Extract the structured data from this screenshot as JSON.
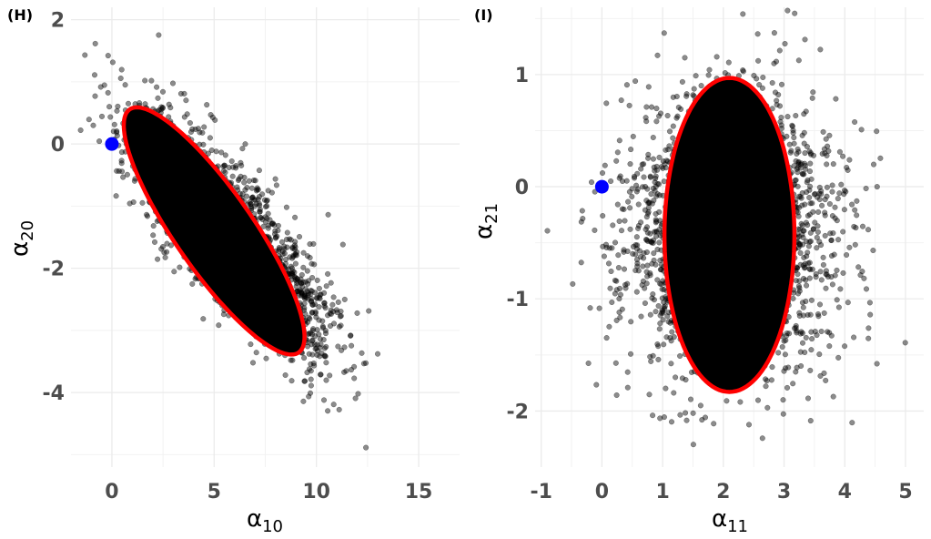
{
  "chart_data": [
    {
      "panel_label": "(H)",
      "type": "scatter",
      "xlabel": "α",
      "xlabel_sub": "10",
      "ylabel": "α",
      "ylabel_sub": "20",
      "xlim": [
        -2,
        17
      ],
      "ylim": [
        -5.2,
        2.2
      ],
      "x_ticks": [
        0,
        5,
        10,
        15
      ],
      "y_ticks": [
        -4,
        -2,
        0,
        2
      ],
      "x_tick_labels": [
        "0",
        "5",
        "10",
        "15"
      ],
      "y_tick_labels": [
        "-4",
        "-2",
        "0",
        "2"
      ],
      "grid": true,
      "point_color": "#000000",
      "cloud": {
        "mean": [
          5.6,
          -1.4
        ],
        "sd": [
          2.4,
          0.95
        ],
        "correlation": -0.82,
        "n": 2600,
        "seed": 11
      },
      "ellipse": {
        "center": [
          5.0,
          -1.4
        ],
        "semi_major": 4.75,
        "semi_minor": 0.96,
        "angle_deg": -22.0,
        "color": "#ff0000"
      },
      "reference_point": {
        "x": 0,
        "y": 0,
        "color": "#0000ff"
      }
    },
    {
      "panel_label": "(I)",
      "type": "scatter",
      "xlabel": "α",
      "xlabel_sub": "11",
      "ylabel": "α",
      "ylabel_sub": "21",
      "xlim": [
        -1.1,
        5.3
      ],
      "ylim": [
        -2.5,
        1.6
      ],
      "x_ticks": [
        -1,
        0,
        1,
        2,
        3,
        4,
        5
      ],
      "y_ticks": [
        -2,
        -1,
        0,
        1
      ],
      "x_tick_labels": [
        "-1",
        "0",
        "1",
        "2",
        "3",
        "4",
        "5"
      ],
      "y_tick_labels": [
        "-2",
        "-1",
        "0",
        "1"
      ],
      "grid": true,
      "point_color": "#000000",
      "cloud": {
        "mean": [
          2.1,
          -0.42
        ],
        "sd": [
          0.85,
          0.6
        ],
        "correlation": 0.0,
        "n": 2600,
        "seed": 23
      },
      "ellipse": {
        "center": [
          2.1,
          -0.43
        ],
        "semi_major": 1.07,
        "semi_minor": 1.4,
        "angle_deg": 0,
        "color": "#ff0000"
      },
      "reference_point": {
        "x": 0,
        "y": 0,
        "color": "#0000ff"
      }
    }
  ]
}
